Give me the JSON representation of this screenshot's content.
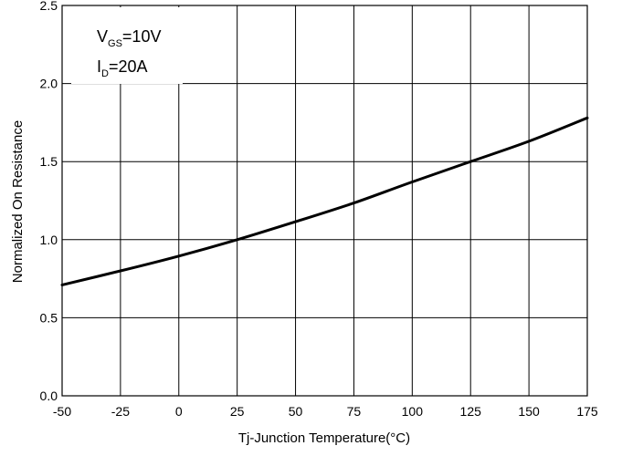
{
  "chart_data": {
    "type": "line",
    "xlabel": "Tj-Junction Temperature(°C)",
    "ylabel": "Normalized On Resistance",
    "xlim": [
      -50,
      175
    ],
    "ylim": [
      0.0,
      2.5
    ],
    "x_ticks": [
      "-50",
      "-25",
      "0",
      "25",
      "50",
      "75",
      "100",
      "125",
      "150",
      "175"
    ],
    "y_ticks": [
      "0.0",
      "0.5",
      "1.0",
      "1.5",
      "2.0",
      "2.5"
    ],
    "grid": true,
    "annotation": {
      "line1": {
        "main": "V",
        "sub": "GS",
        "rest": "=10V"
      },
      "line2": {
        "main": "I",
        "sub": "D",
        "rest": "=20A"
      }
    },
    "series": [
      {
        "x": [
          -50,
          -25,
          0,
          25,
          50,
          75,
          100,
          125,
          150,
          175
        ],
        "values": [
          0.71,
          0.8,
          0.895,
          1.0,
          1.115,
          1.235,
          1.37,
          1.5,
          1.63,
          1.78
        ]
      }
    ]
  }
}
